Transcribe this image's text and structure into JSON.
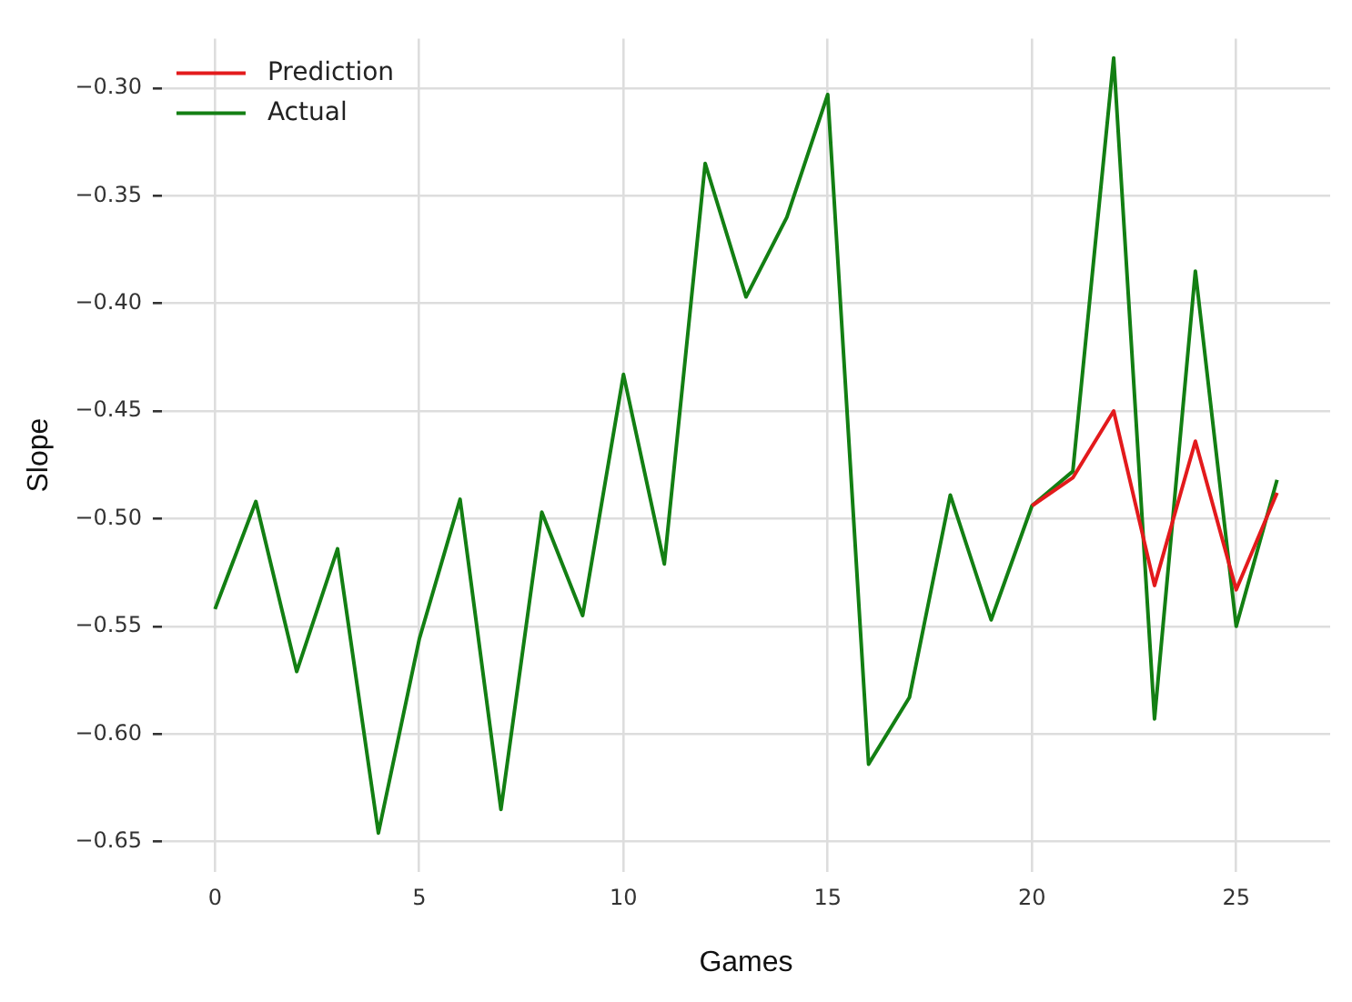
{
  "chart_data": {
    "type": "line",
    "xlabel": "Games",
    "ylabel": "Slope",
    "series": [
      {
        "name": "Prediction",
        "color": "#e31a1c",
        "x": [
          20,
          21,
          22,
          23,
          24,
          25,
          26
        ],
        "values": [
          -0.494,
          -0.481,
          -0.45,
          -0.531,
          -0.464,
          -0.533,
          -0.488
        ]
      },
      {
        "name": "Actual",
        "color": "#137f13",
        "x": [
          0,
          1,
          2,
          3,
          4,
          5,
          6,
          7,
          8,
          9,
          10,
          11,
          12,
          13,
          14,
          15,
          16,
          17,
          18,
          19,
          20,
          21,
          22,
          23,
          24,
          25,
          26
        ],
        "values": [
          -0.542,
          -0.492,
          -0.571,
          -0.514,
          -0.646,
          -0.556,
          -0.491,
          -0.635,
          -0.497,
          -0.545,
          -0.433,
          -0.521,
          -0.335,
          -0.397,
          -0.36,
          -0.303,
          -0.614,
          -0.583,
          -0.489,
          -0.547,
          -0.494,
          -0.478,
          -0.286,
          -0.593,
          -0.385,
          -0.55,
          -0.482
        ]
      }
    ],
    "xlim": [
      -1.3,
      27.3
    ],
    "xticks": [
      0,
      5,
      10,
      15,
      20,
      25
    ],
    "ylim": [
      -0.664,
      -0.277
    ],
    "yticks": [
      {
        "value": -0.65,
        "label": "−0.65"
      },
      {
        "value": -0.6,
        "label": "−0.60"
      },
      {
        "value": -0.55,
        "label": "−0.55"
      },
      {
        "value": -0.5,
        "label": "−0.50"
      },
      {
        "value": -0.45,
        "label": "−0.45"
      },
      {
        "value": -0.4,
        "label": "−0.40"
      },
      {
        "value": -0.35,
        "label": "−0.35"
      },
      {
        "value": -0.3,
        "label": "−0.30"
      }
    ],
    "grid": true,
    "legend": "top left",
    "marker": "none",
    "line_style": "solid"
  }
}
